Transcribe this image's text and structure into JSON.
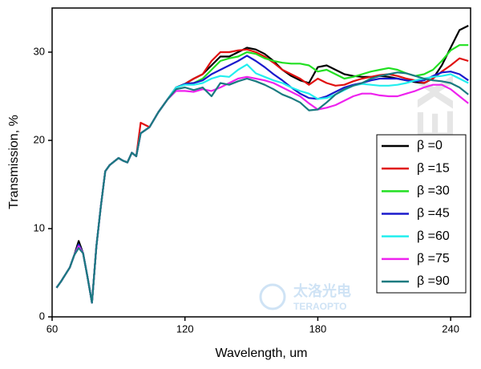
{
  "chart_data": {
    "type": "line",
    "x_label": "Wavelength, um",
    "y_label": "Transmission, %",
    "watermarks": [
      "TYDEX",
      "太洛光电",
      "TERAOPTO"
    ],
    "xlim": [
      60,
      249
    ],
    "xticks": [
      60,
      120,
      180,
      240
    ],
    "ylim": [
      0,
      35
    ],
    "yticks": [
      0,
      10,
      20,
      30
    ],
    "legend": "lower right",
    "x": [
      62,
      64,
      66,
      68,
      70,
      72,
      74,
      76,
      78,
      80,
      82,
      84,
      86,
      88,
      90,
      92,
      94,
      96,
      98,
      100,
      104,
      108,
      112,
      116,
      120,
      124,
      128,
      132,
      136,
      140,
      144,
      148,
      152,
      156,
      160,
      164,
      168,
      172,
      176,
      180,
      184,
      188,
      192,
      196,
      200,
      204,
      208,
      212,
      216,
      220,
      224,
      228,
      232,
      236,
      240,
      244,
      248
    ],
    "series": [
      {
        "name": "β =0",
        "color": "#000000",
        "values": [
          3.3,
          4.0,
          4.8,
          5.6,
          7.0,
          8.6,
          7.2,
          4.5,
          1.6,
          8.0,
          12.5,
          16.5,
          17.2,
          17.6,
          18.0,
          17.7,
          17.5,
          18.6,
          18.2,
          20.8,
          21.5,
          23.2,
          24.6,
          26.0,
          26.4,
          27,
          27.5,
          28.5,
          29.5,
          29.5,
          30,
          30.5,
          30.3,
          29.8,
          29,
          28,
          27.3,
          26.8,
          26.5,
          28.3,
          28.5,
          28,
          27.5,
          27.3,
          27.2,
          27.2,
          27.3,
          27.2,
          27,
          26.8,
          26.6,
          26.5,
          27,
          28.5,
          30.5,
          32.5,
          33
        ]
      },
      {
        "name": "β =15",
        "color": "#e01010",
        "values": [
          3.3,
          4.0,
          4.8,
          5.6,
          7.0,
          8.2,
          7.2,
          4.5,
          1.6,
          8.0,
          12.5,
          16.5,
          17.2,
          17.6,
          18.0,
          17.7,
          17.5,
          18.6,
          18.2,
          22.0,
          21.5,
          23.2,
          24.6,
          26.0,
          26.4,
          27,
          27.5,
          29,
          30,
          30,
          30.2,
          30.3,
          30,
          29.5,
          28.8,
          28,
          27.5,
          27,
          26.3,
          27,
          26.5,
          26.2,
          26.3,
          26.7,
          27,
          27.2,
          27.4,
          27.5,
          27.3,
          27,
          26.8,
          26.5,
          27,
          27.8,
          28.5,
          29.3,
          29
        ]
      },
      {
        "name": "β =30",
        "color": "#22e022",
        "values": [
          3.3,
          4.0,
          4.8,
          5.6,
          7.0,
          8.2,
          7.2,
          4.5,
          1.6,
          8.0,
          12.5,
          16.5,
          17.2,
          17.6,
          18.0,
          17.7,
          17.5,
          18.6,
          18.2,
          20.8,
          21.5,
          23.2,
          24.6,
          26.0,
          26.4,
          26.5,
          27,
          28,
          29,
          29.3,
          29.5,
          30,
          29.8,
          29.3,
          29,
          28.8,
          28.7,
          28.7,
          28.5,
          27.8,
          28,
          27.5,
          27,
          27.2,
          27.5,
          27.8,
          28,
          28.2,
          28,
          27.6,
          27.3,
          27.5,
          28,
          29,
          30.2,
          30.8,
          30.8
        ]
      },
      {
        "name": "β =45",
        "color": "#1a1acc",
        "values": [
          3.3,
          4.0,
          4.8,
          5.6,
          7.0,
          8.2,
          7.2,
          4.5,
          1.6,
          8.0,
          12.5,
          16.5,
          17.2,
          17.6,
          18.0,
          17.7,
          17.5,
          18.6,
          18.2,
          20.8,
          21.5,
          23.2,
          24.6,
          26.0,
          26.4,
          26.5,
          26.8,
          27.5,
          28,
          28.5,
          29,
          29.6,
          29,
          28.3,
          27.5,
          26.8,
          26,
          25.3,
          24.8,
          24.7,
          25,
          25.5,
          26,
          26.3,
          26.5,
          26.8,
          27,
          27,
          27,
          26.8,
          26.7,
          26.8,
          27.3,
          27.7,
          27.8,
          27.5,
          26.8
        ]
      },
      {
        "name": "β =60",
        "color": "#22eeee",
        "values": [
          3.3,
          4.0,
          4.8,
          5.6,
          7.0,
          8.0,
          7.2,
          4.5,
          1.6,
          8.0,
          12.5,
          16.5,
          17.2,
          17.6,
          18.0,
          17.7,
          17.5,
          18.6,
          18.2,
          20.8,
          21.5,
          23.2,
          24.6,
          26.0,
          26.3,
          26.3,
          26.5,
          27,
          27.3,
          27.2,
          28,
          28.6,
          27.6,
          27.2,
          26.8,
          26.5,
          26,
          25.6,
          25.3,
          24.7,
          24.8,
          25.2,
          25.7,
          26.2,
          26.4,
          26.3,
          26.2,
          26.2,
          26.3,
          26.5,
          26.8,
          27,
          27.2,
          27.3,
          27.5,
          27,
          26.5
        ]
      },
      {
        "name": "β =75",
        "color": "#ee22ee",
        "values": [
          3.3,
          4.0,
          4.8,
          5.6,
          7.0,
          8.0,
          7.2,
          4.5,
          1.6,
          8.0,
          12.5,
          16.5,
          17.2,
          17.6,
          18.0,
          17.7,
          17.5,
          18.6,
          18.2,
          20.8,
          21.5,
          23.2,
          24.6,
          25.6,
          25.6,
          25.5,
          25.8,
          25.6,
          26,
          26.5,
          27,
          27.2,
          27,
          26.8,
          26.5,
          26,
          25.5,
          25,
          24.2,
          23.5,
          23.7,
          24,
          24.5,
          25,
          25.3,
          25.3,
          25.1,
          25,
          25,
          25.3,
          25.6,
          26,
          26.3,
          26.3,
          25.8,
          25,
          24.2
        ]
      },
      {
        "name": "β =90",
        "color": "#1a7a80",
        "values": [
          3.3,
          4.0,
          4.8,
          5.6,
          7.0,
          7.8,
          7.2,
          4.5,
          1.6,
          8.0,
          12.5,
          16.5,
          17.2,
          17.6,
          18.0,
          17.7,
          17.5,
          18.6,
          18.2,
          20.8,
          21.5,
          23.2,
          24.6,
          25.8,
          26.0,
          25.7,
          26,
          25,
          26.5,
          26.3,
          26.7,
          27,
          26.7,
          26.3,
          25.8,
          25.2,
          24.8,
          24.3,
          23.4,
          23.5,
          24.3,
          25.2,
          25.8,
          26.2,
          26.5,
          27,
          27.3,
          27.5,
          27.7,
          27.6,
          27.3,
          27,
          26.8,
          26.7,
          26.5,
          26,
          25.2
        ]
      }
    ]
  }
}
